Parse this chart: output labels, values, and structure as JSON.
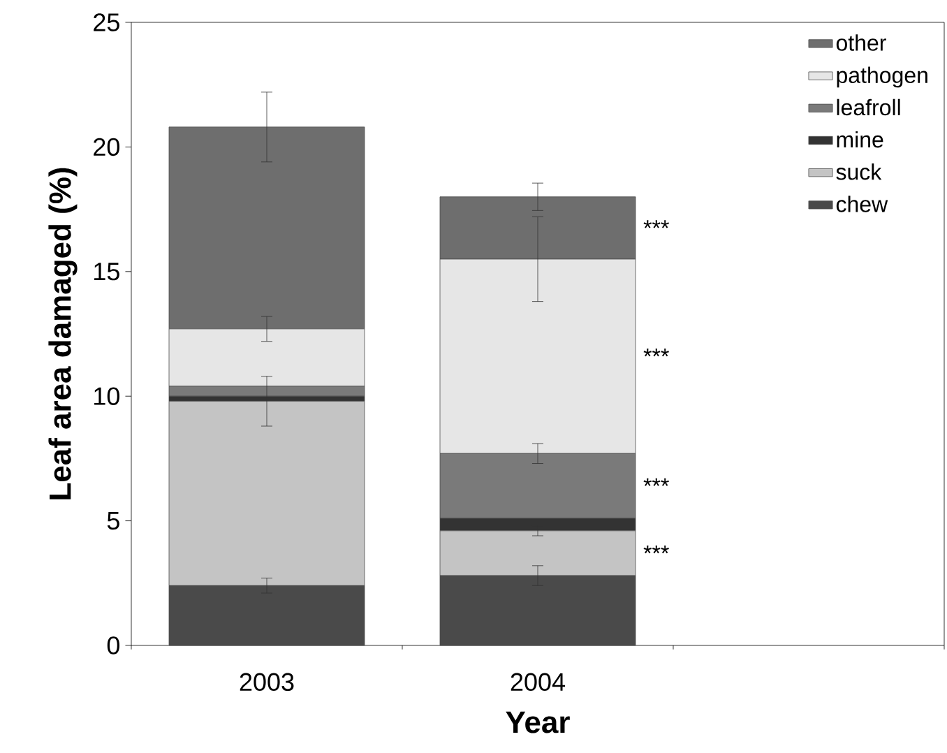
{
  "chart_data": {
    "type": "bar",
    "stacked": true,
    "xlabel": "Year",
    "ylabel": "Leaf area damaged (%)",
    "categories": [
      "2003",
      "2004",
      null
    ],
    "series": [
      {
        "name": "chew",
        "color": "#4a4a4a",
        "values": [
          2.4,
          2.8,
          null
        ],
        "errors": [
          0.3,
          0.4,
          null
        ]
      },
      {
        "name": "suck",
        "color": "#c4c4c4",
        "values": [
          7.4,
          1.8,
          null
        ],
        "errors": [
          1.0,
          0.2,
          null
        ]
      },
      {
        "name": "mine",
        "color": "#333333",
        "values": [
          0.2,
          0.5,
          null
        ]
      },
      {
        "name": "leafroll",
        "color": "#7a7a7a",
        "values": [
          0.4,
          2.6,
          null
        ],
        "errors": [
          null,
          0.4,
          null
        ]
      },
      {
        "name": "pathogen",
        "color": "#e6e6e6",
        "values": [
          2.3,
          7.8,
          null
        ],
        "errors": [
          0.5,
          1.7,
          null
        ]
      },
      {
        "name": "other",
        "color": "#6e6e6e",
        "values": [
          8.1,
          2.5,
          null
        ],
        "errors": [
          1.4,
          0.55,
          null
        ]
      }
    ],
    "ylim": [
      0,
      25
    ],
    "yticks": [
      0,
      5,
      10,
      15,
      20,
      25
    ],
    "legend": "top right",
    "annotations": [
      "***",
      "***",
      "***",
      "***"
    ]
  }
}
